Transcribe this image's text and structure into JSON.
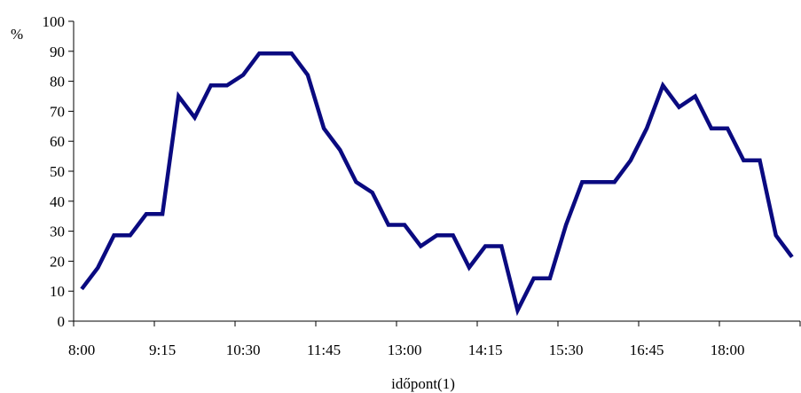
{
  "chart_data": {
    "type": "line",
    "title": "",
    "xlabel": "időpont(1)",
    "ylabel": "%",
    "ylim": [
      0,
      100
    ],
    "yticks": [
      0,
      10,
      20,
      30,
      40,
      50,
      60,
      70,
      80,
      90,
      100
    ],
    "xtick_labels": [
      "8:00",
      "9:15",
      "10:30",
      "11:45",
      "13:00",
      "14:15",
      "15:30",
      "16:45",
      "18:00"
    ],
    "grid": false,
    "legend": "none",
    "series": [
      {
        "color": "#0a0a80",
        "x": [
          "8:00",
          "8:15",
          "8:30",
          "8:45",
          "9:00",
          "9:15",
          "9:30",
          "9:45",
          "10:00",
          "10:15",
          "10:30",
          "10:45",
          "11:00",
          "11:15",
          "11:30",
          "11:45",
          "12:00",
          "12:15",
          "12:30",
          "12:45",
          "13:00",
          "13:15",
          "13:30",
          "13:45",
          "14:00",
          "14:15",
          "14:30",
          "14:45",
          "15:00",
          "15:15",
          "15:30",
          "15:45",
          "16:00",
          "16:15",
          "16:30",
          "16:45",
          "17:00",
          "17:15",
          "17:30",
          "17:45",
          "18:00",
          "18:15",
          "18:30",
          "18:45",
          "19:00"
        ],
        "values": [
          10.7,
          17.8,
          28.6,
          28.6,
          35.7,
          35.7,
          75.0,
          67.9,
          78.6,
          78.6,
          82.1,
          89.3,
          89.3,
          89.3,
          82.1,
          64.3,
          57.1,
          46.4,
          42.9,
          32.1,
          32.1,
          25.0,
          28.6,
          28.6,
          17.9,
          25.0,
          25.0,
          3.6,
          14.3,
          14.3,
          32.1,
          46.4,
          46.4,
          46.4,
          53.6,
          64.3,
          78.6,
          71.4,
          75.0,
          64.3,
          64.3,
          53.6,
          53.6,
          28.6,
          21.4
        ]
      }
    ]
  }
}
